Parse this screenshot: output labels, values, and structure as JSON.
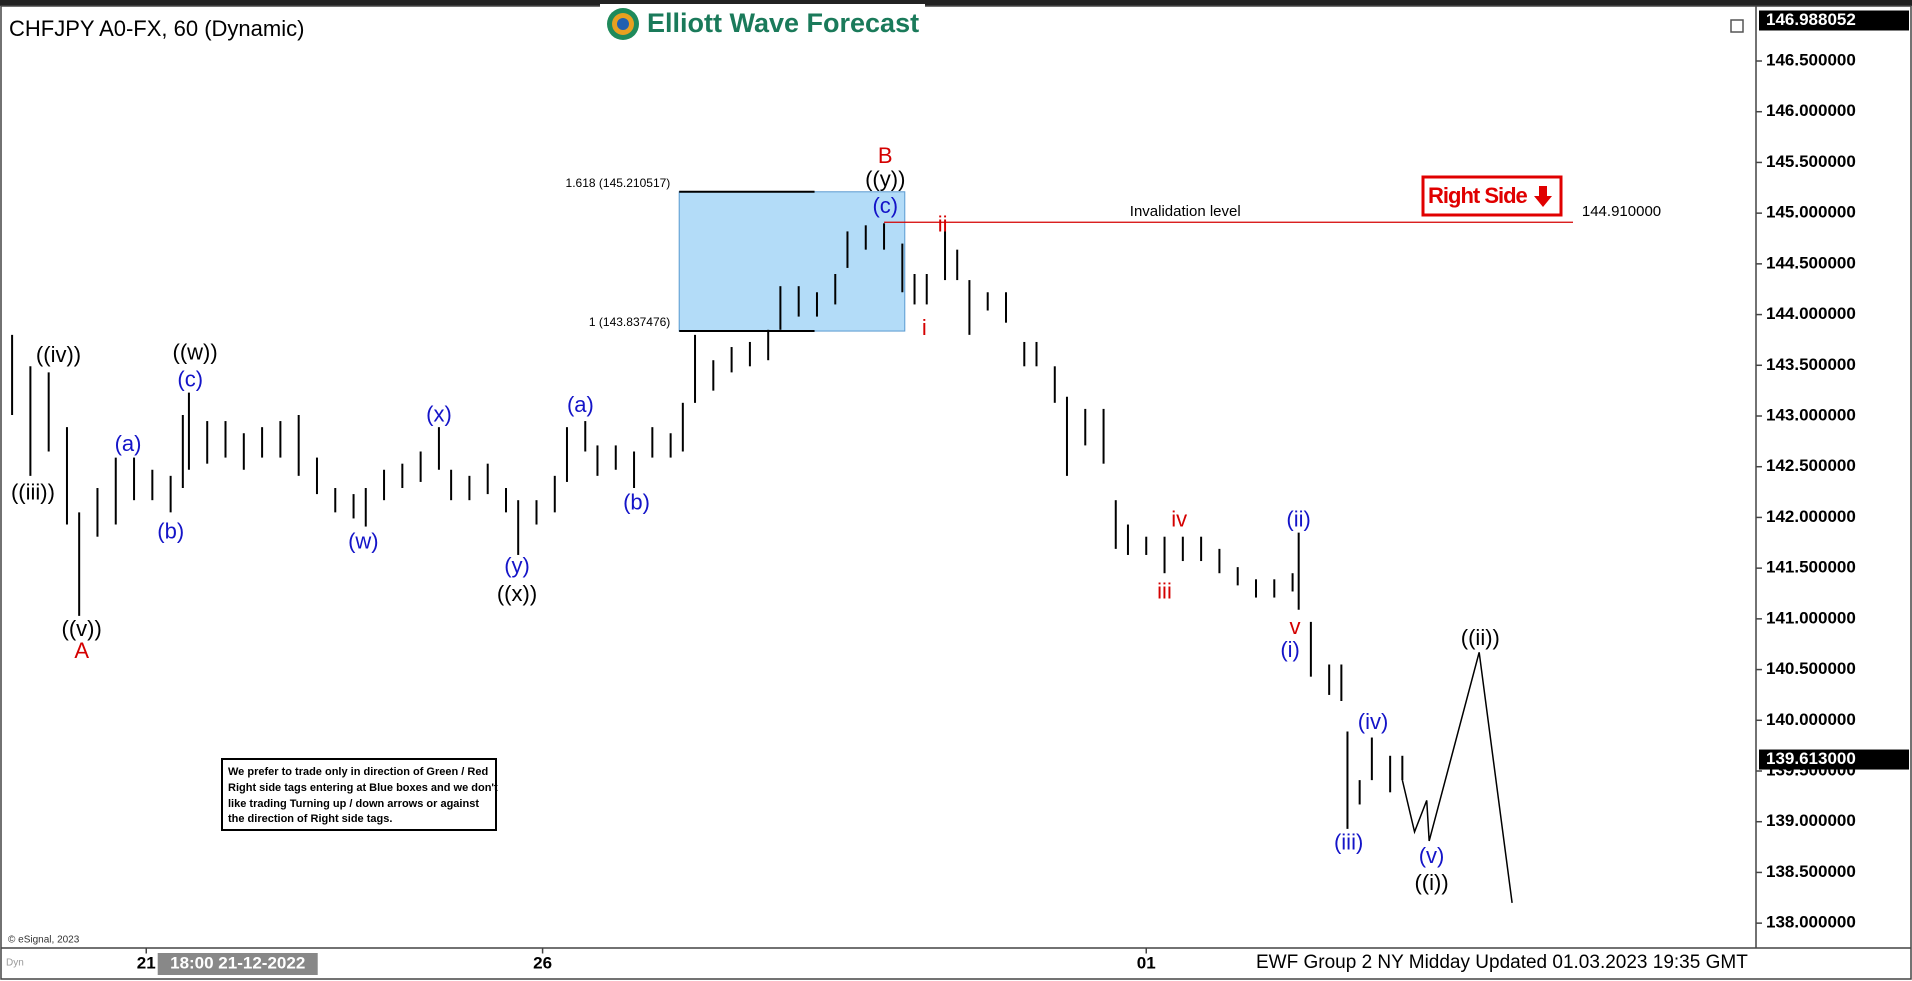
{
  "chart_data": {
    "type": "ohlc",
    "title": "CHFJPY A0-FX, 60 (Dynamic)",
    "brand": "Elliott Wave Forecast",
    "footer": "EWF Group 2 NY Midday Updated 01.03.2023 19:35 GMT",
    "copyright": "© eSignal, 2023",
    "corner_label": "Dyn",
    "right_side_tag": "Right Side",
    "note": [
      "We prefer to trade only in direction of Green / Red",
      "Right side tags entering at Blue boxes and we don't",
      "like trading Turning up / down arrows or against",
      "the direction of Right side tags."
    ],
    "bar_color": "#000000",
    "bars": {
      "x": [
        1,
        4,
        7,
        10,
        12,
        15,
        18,
        21,
        24,
        27,
        29,
        30,
        33,
        36,
        39,
        42,
        45,
        48,
        51,
        54,
        57,
        59,
        62,
        65,
        68,
        71,
        73,
        76,
        79,
        82,
        84,
        87,
        90,
        92,
        95,
        97,
        100,
        103,
        106,
        109,
        111,
        113,
        116,
        119,
        122,
        125,
        127,
        130,
        133,
        136,
        138,
        141,
        144,
        147,
        149,
        151,
        154,
        156,
        158,
        161,
        164,
        167,
        169,
        172,
        174,
        177,
        180,
        182,
        184,
        187,
        190,
        193,
        196,
        199,
        202,
        205,
        208,
        211,
        212,
        214,
        217,
        219,
        220,
        222,
        224,
        227,
        229
      ],
      "high": [
        143.8,
        143.49,
        143.43,
        142.89,
        142.05,
        142.29,
        142.59,
        142.59,
        142.47,
        142.41,
        143.01,
        143.23,
        142.95,
        142.95,
        142.83,
        142.89,
        142.95,
        143.01,
        142.59,
        142.29,
        142.23,
        142.29,
        142.47,
        142.53,
        142.65,
        142.89,
        142.47,
        142.41,
        142.53,
        142.29,
        142.17,
        142.17,
        142.41,
        142.89,
        142.95,
        142.71,
        142.71,
        142.65,
        142.89,
        142.83,
        143.13,
        143.8,
        143.55,
        143.68,
        143.73,
        143.85,
        144.28,
        144.28,
        144.22,
        144.4,
        144.82,
        144.88,
        144.9,
        144.7,
        144.4,
        144.4,
        144.82,
        144.64,
        144.34,
        144.22,
        144.22,
        143.73,
        143.73,
        143.49,
        143.19,
        143.07,
        143.07,
        142.17,
        141.93,
        141.81,
        141.81,
        141.81,
        141.81,
        141.69,
        141.51,
        141.39,
        141.39,
        141.45,
        141.85,
        140.97,
        140.55,
        140.55,
        139.89,
        139.41,
        139.83,
        139.65,
        139.65
      ],
      "low": [
        143.01,
        142.41,
        142.65,
        141.93,
        141.03,
        141.81,
        141.93,
        142.17,
        142.17,
        142.05,
        142.29,
        142.47,
        142.53,
        142.59,
        142.47,
        142.59,
        142.59,
        142.41,
        142.23,
        142.05,
        141.99,
        141.91,
        142.17,
        142.29,
        142.35,
        142.47,
        142.17,
        142.17,
        142.23,
        142.05,
        141.63,
        141.93,
        142.05,
        142.35,
        142.65,
        142.41,
        142.47,
        142.29,
        142.59,
        142.59,
        142.65,
        143.13,
        143.25,
        143.43,
        143.49,
        143.55,
        143.85,
        143.98,
        143.98,
        144.1,
        144.46,
        144.64,
        144.64,
        144.22,
        144.1,
        144.1,
        144.34,
        144.34,
        143.8,
        144.04,
        143.92,
        143.49,
        143.49,
        143.13,
        142.41,
        142.71,
        142.53,
        141.69,
        141.63,
        141.63,
        141.45,
        141.57,
        141.57,
        141.45,
        141.33,
        141.21,
        141.21,
        141.27,
        141.09,
        140.43,
        140.25,
        140.19,
        138.93,
        139.17,
        139.41,
        139.29,
        139.41
      ]
    },
    "projection_color": "#000000",
    "projection": {
      "x": [
        229,
        231,
        233,
        233.4,
        241.6,
        247
      ],
      "values": [
        139.41,
        138.9,
        139.21,
        138.81,
        140.67,
        138.2
      ]
    },
    "wave_labels": [
      {
        "text": "((iv))",
        "color": "#000000"
      },
      {
        "text": "((iii))",
        "color": "#000000"
      },
      {
        "text": "((v))",
        "color": "#000000"
      },
      {
        "text": "A",
        "color": "#d40000"
      },
      {
        "text": "(a)",
        "color": "#1414c8"
      },
      {
        "text": "(b)",
        "color": "#1414c8"
      },
      {
        "text": "((w))",
        "color": "#000000"
      },
      {
        "text": "(c)",
        "color": "#1414c8"
      },
      {
        "text": "(w)",
        "color": "#1414c8"
      },
      {
        "text": "(x)",
        "color": "#1414c8"
      },
      {
        "text": "(y)",
        "color": "#1414c8"
      },
      {
        "text": "((x))",
        "color": "#000000"
      },
      {
        "text": "(a)",
        "color": "#1414c8"
      },
      {
        "text": "(b)",
        "color": "#1414c8"
      },
      {
        "text": "B",
        "color": "#d40000"
      },
      {
        "text": "((y))",
        "color": "#000000"
      },
      {
        "text": "(c)",
        "color": "#1414c8"
      },
      {
        "text": "ii",
        "color": "#d40000"
      },
      {
        "text": "i",
        "color": "#d40000"
      },
      {
        "text": "iv",
        "color": "#d40000"
      },
      {
        "text": "iii",
        "color": "#d40000"
      },
      {
        "text": "(ii)",
        "color": "#1414c8"
      },
      {
        "text": "v",
        "color": "#d40000"
      },
      {
        "text": "(i)",
        "color": "#1414c8"
      },
      {
        "text": "(iv)",
        "color": "#1414c8"
      },
      {
        "text": "(iii)",
        "color": "#1414c8"
      },
      {
        "text": "(v)",
        "color": "#1414c8"
      },
      {
        "text": "((i))",
        "color": "#000000"
      },
      {
        "text": "((ii))",
        "color": "#000000"
      }
    ],
    "fib_box": {
      "color": "#b3dcf8",
      "levels": [
        {
          "label": "1.618 (145.210517)",
          "value": 145.210517
        },
        {
          "label": "1 (143.837476)",
          "value": 143.837476
        }
      ]
    },
    "invalidation": {
      "label": "Invalidation level",
      "value": 144.91,
      "value_label": "144.910000",
      "color": "#d40000"
    },
    "last_price": {
      "value": 139.613,
      "label": "139.613000"
    },
    "axis_top_marker": {
      "value": 146.988052,
      "label": "146.988052"
    },
    "crosshair": {
      "value": 38,
      "label": "18:00 21-12-2022"
    },
    "xlim": [
      0,
      287
    ],
    "xticks": [
      {
        "value": 23,
        "label": "21"
      },
      {
        "value": 88,
        "label": "26"
      },
      {
        "value": 187,
        "label": "01"
      }
    ],
    "ylim": [
      137.75,
      146.988052
    ],
    "yticks": [
      {
        "value": 146.5,
        "label": "146.500000"
      },
      {
        "value": 146.0,
        "label": "146.000000"
      },
      {
        "value": 145.5,
        "label": "145.500000"
      },
      {
        "value": 145.0,
        "label": "145.000000"
      },
      {
        "value": 144.5,
        "label": "144.500000"
      },
      {
        "value": 144.0,
        "label": "144.000000"
      },
      {
        "value": 143.5,
        "label": "143.500000"
      },
      {
        "value": 143.0,
        "label": "143.000000"
      },
      {
        "value": 142.5,
        "label": "142.500000"
      },
      {
        "value": 142.0,
        "label": "142.000000"
      },
      {
        "value": 141.5,
        "label": "141.500000"
      },
      {
        "value": 141.0,
        "label": "141.000000"
      },
      {
        "value": 140.5,
        "label": "140.500000"
      },
      {
        "value": 140.0,
        "label": "140.000000"
      },
      {
        "value": 139.5,
        "label": "139.500000"
      },
      {
        "value": 139.0,
        "label": "139.000000"
      },
      {
        "value": 138.5,
        "label": "138.500000"
      },
      {
        "value": 138.0,
        "label": "138.000000"
      }
    ],
    "grid": false
  }
}
